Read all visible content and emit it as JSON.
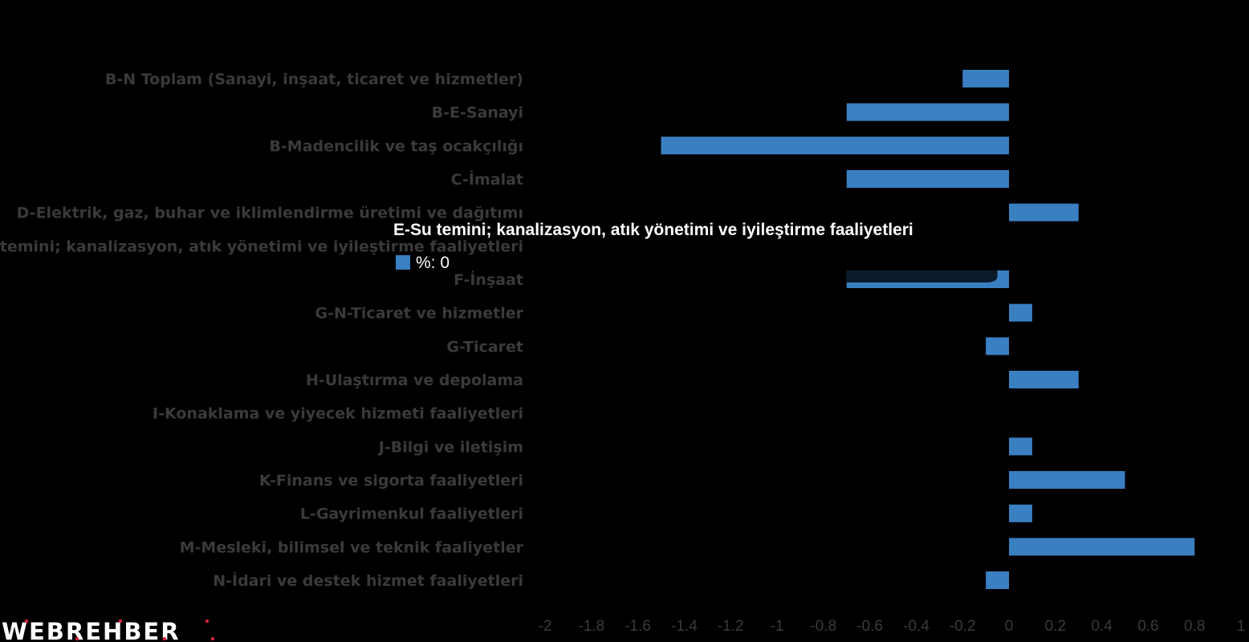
{
  "brand": {
    "logo_text": "WEBREHBER",
    "accent_color": "#d7263d"
  },
  "chart_data": {
    "type": "bar",
    "orientation": "horizontal",
    "categories": [
      "B-N Toplam (Sanayi, inşaat, ticaret ve hizmetler)",
      "B-E-Sanayi",
      "B-Madencilik ve taş ocakçılığı",
      "C-İmalat",
      "D-Elektrik, gaz, buhar ve iklimlendirme üretimi ve dağıtımı",
      "E-Su temini; kanalizasyon, atık yönetimi ve iyileştirme faaliyetleri",
      "F-İnşaat",
      "G-N-Ticaret ve hizmetler",
      "G-Ticaret",
      "H-Ulaştırma ve depolama",
      "I-Konaklama ve yiyecek hizmeti faaliyetleri",
      "J-Bilgi ve iletişim",
      "K-Finans ve sigorta faaliyetleri",
      "L-Gayrimenkul faaliyetleri",
      "M-Mesleki, bilimsel ve teknik faaliyetler",
      "N-İdari ve destek hizmet faaliyetleri"
    ],
    "series": [
      {
        "name": "%",
        "color": "#3a7fc1",
        "values": [
          -0.2,
          -0.7,
          -1.5,
          -0.7,
          0.3,
          0,
          -0.7,
          0.1,
          -0.1,
          0.3,
          0,
          0.1,
          0.5,
          0.1,
          0.8,
          -0.1
        ]
      }
    ],
    "xlim": [
      -2,
      1
    ],
    "xticks": [
      -2,
      -1.8,
      -1.6,
      -1.4,
      -1.2,
      -1,
      -0.8,
      -0.6,
      -0.4,
      -0.2,
      0,
      0.2,
      0.4,
      0.6,
      0.8,
      1
    ],
    "xtick_labels": [
      "-2",
      "-1.8",
      "-1.6",
      "-1.4",
      "-1.2",
      "-1",
      "-0.8",
      "-0.6",
      "-0.4",
      "-0.2",
      "0",
      "0.2",
      "0.4",
      "0.6",
      "0.8",
      "1"
    ],
    "grid": false,
    "legend": "none",
    "tooltip": {
      "title": "E-Su temini; kanalizasyon, atık yönetimi ve iyileştirme faaliyetleri",
      "value_text": "%: 0"
    }
  }
}
